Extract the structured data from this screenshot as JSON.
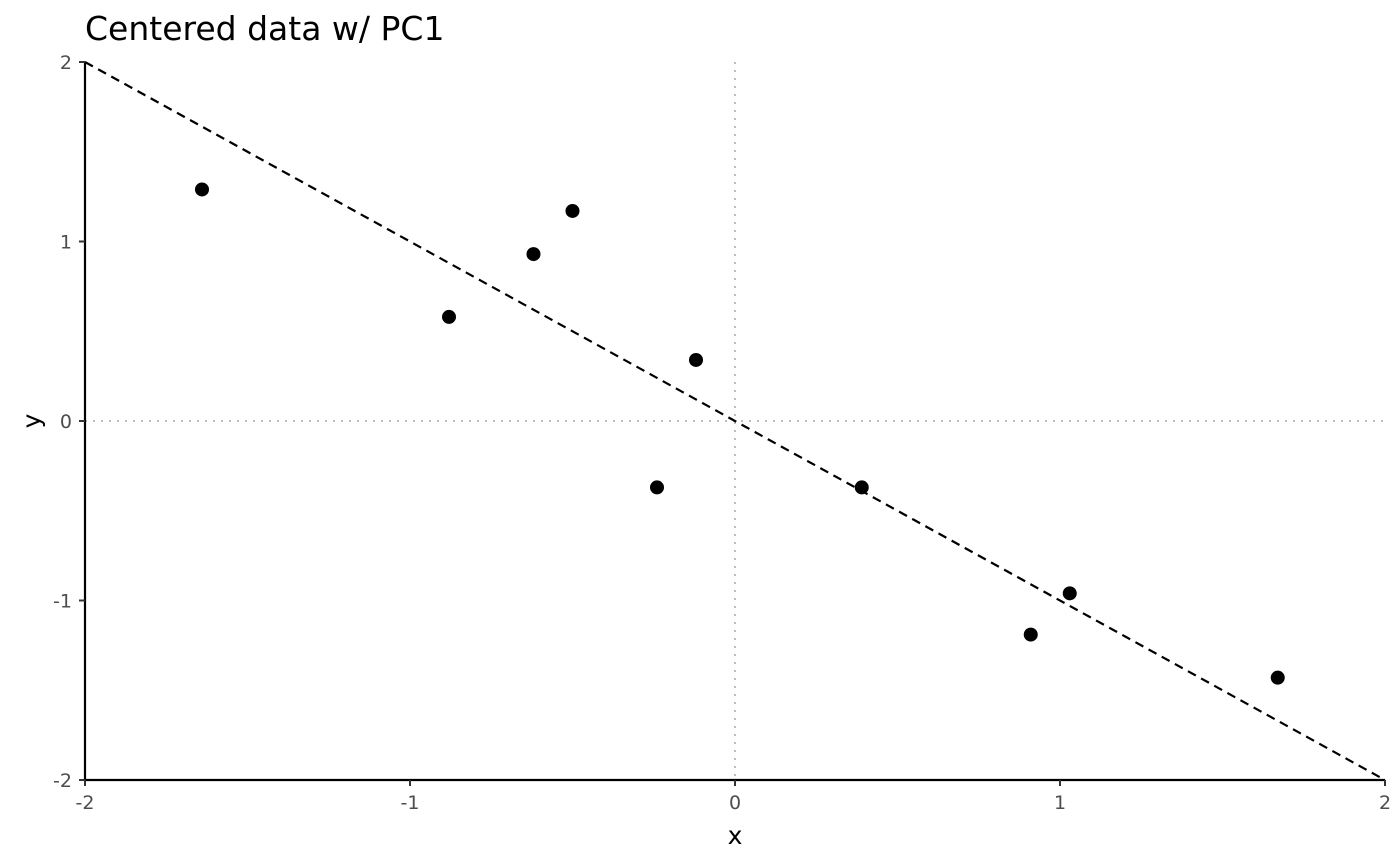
{
  "chart_data": {
    "type": "scatter",
    "title": "Centered data w/ PC1",
    "xlabel": "x",
    "ylabel": "y",
    "xlim": [
      -2,
      2
    ],
    "ylim": [
      -2,
      2
    ],
    "xticks": [
      "-2",
      "-1",
      "0",
      "1",
      "2"
    ],
    "yticks": [
      "-2",
      "-1",
      "0",
      "1",
      "2"
    ],
    "grid": false,
    "reference_lines": {
      "x": 0,
      "y": 0,
      "style": "dotted",
      "color": "#bdbdbd"
    },
    "pc1_line": {
      "x": [
        -2,
        2
      ],
      "y": [
        2,
        -2
      ],
      "style": "dashed",
      "color": "#000000"
    },
    "points": [
      {
        "x": -1.64,
        "y": 1.29
      },
      {
        "x": -0.88,
        "y": 0.58
      },
      {
        "x": -0.62,
        "y": 0.93
      },
      {
        "x": -0.5,
        "y": 1.17
      },
      {
        "x": -0.24,
        "y": -0.37
      },
      {
        "x": -0.12,
        "y": 0.34
      },
      {
        "x": 0.39,
        "y": -0.37
      },
      {
        "x": 0.91,
        "y": -1.19
      },
      {
        "x": 1.03,
        "y": -0.96
      },
      {
        "x": 1.67,
        "y": -1.43
      }
    ],
    "point_color": "#000000"
  }
}
